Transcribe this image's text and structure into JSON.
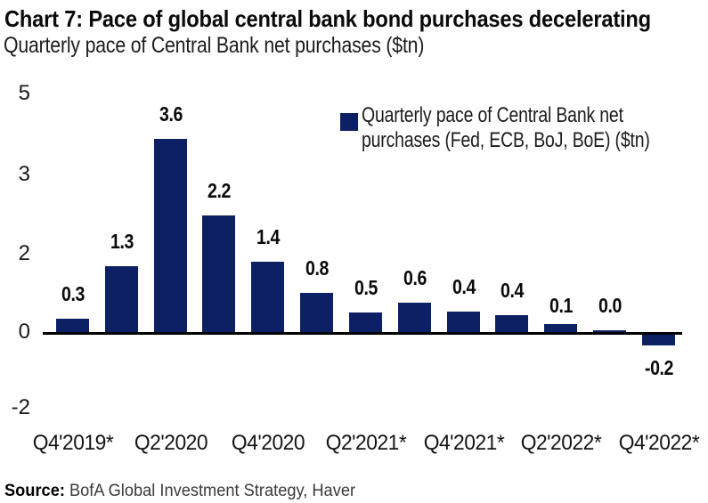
{
  "chart_data": {
    "type": "bar",
    "title": "Chart 7: Pace of global central bank bond purchases decelerating",
    "subtitle": "Quarterly pace of Central Bank net purchases ($tn)",
    "categories": [
      "Q4'2019*",
      "Q2'2020",
      "Q4'2020",
      "Q2'2021*",
      "Q4'2021*",
      "Q2'2022*",
      "Q4'2022*"
    ],
    "values": [
      0.3,
      1.3,
      3.6,
      2.2,
      1.4,
      0.8,
      0.5,
      0.6,
      0.4,
      0.4,
      0.1,
      0.0,
      -0.2
    ],
    "bar_labels": [
      "0.3",
      "1.3",
      "3.6",
      "2.2",
      "1.4",
      "0.8",
      "0.5",
      "0.6",
      "0.4",
      "0.4",
      "0.1",
      "0.0",
      "-0.2"
    ],
    "y_ticks": [
      "5",
      "3",
      "2",
      "0",
      "-2"
    ],
    "ylim": [
      -2,
      5
    ],
    "grid": false,
    "bar_color": "#0e2064",
    "legend_position": "top-right",
    "legend_lines": [
      "Quarterly pace of Central Bank net",
      "purchases (Fed, ECB, BoJ, BoE) ($tn)"
    ]
  },
  "source": {
    "label": "Source:",
    "text": "BofA Global Investment Strategy, Haver"
  }
}
